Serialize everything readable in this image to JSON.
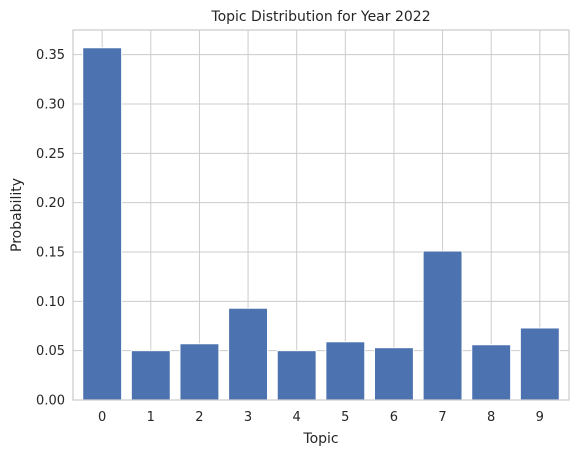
{
  "chart_data": {
    "type": "bar",
    "title": "Topic Distribution for Year 2022",
    "xlabel": "Topic",
    "ylabel": "Probability",
    "categories": [
      "0",
      "1",
      "2",
      "3",
      "4",
      "5",
      "6",
      "7",
      "8",
      "9"
    ],
    "values": [
      0.357,
      0.05,
      0.057,
      0.093,
      0.05,
      0.059,
      0.053,
      0.151,
      0.056,
      0.073
    ],
    "ylim": [
      0,
      0.375
    ],
    "yticks": [
      "0.00",
      "0.05",
      "0.10",
      "0.15",
      "0.20",
      "0.25",
      "0.30",
      "0.35"
    ],
    "grid": true,
    "bar_color": "#4c72b0"
  }
}
